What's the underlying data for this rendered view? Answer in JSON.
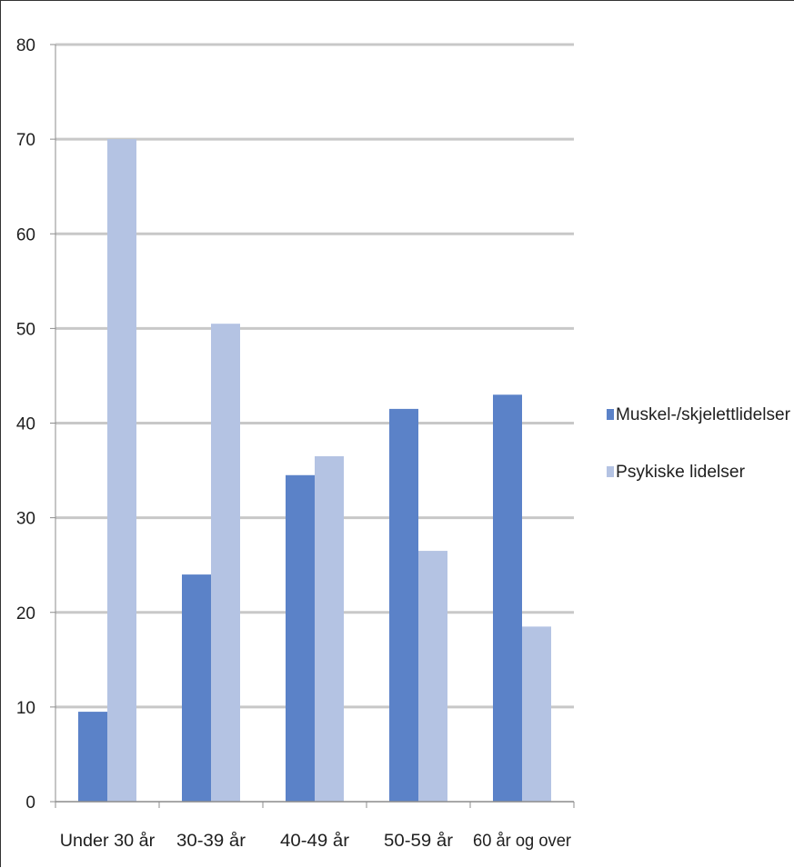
{
  "chart_data": {
    "type": "bar",
    "categories": [
      "Under 30 år",
      "30-39 år",
      "40-49 år",
      "50-59 år",
      "60 år og over"
    ],
    "series": [
      {
        "name": "Muskel-/skjelettlidelser",
        "values": [
          9.5,
          24,
          34.5,
          41.5,
          43
        ],
        "color": "#5b82c8"
      },
      {
        "name": "Psykiske lidelser",
        "values": [
          70,
          50.5,
          36.5,
          26.5,
          18.5
        ],
        "color": "#b4c3e3"
      }
    ],
    "ylim": [
      0,
      80
    ],
    "yticks": [
      0,
      10,
      20,
      30,
      40,
      50,
      60,
      70,
      80
    ],
    "grid": true,
    "legend": "right",
    "colors": {
      "gridline": "#c8c8c8",
      "axis": "#8c8c8c"
    }
  }
}
